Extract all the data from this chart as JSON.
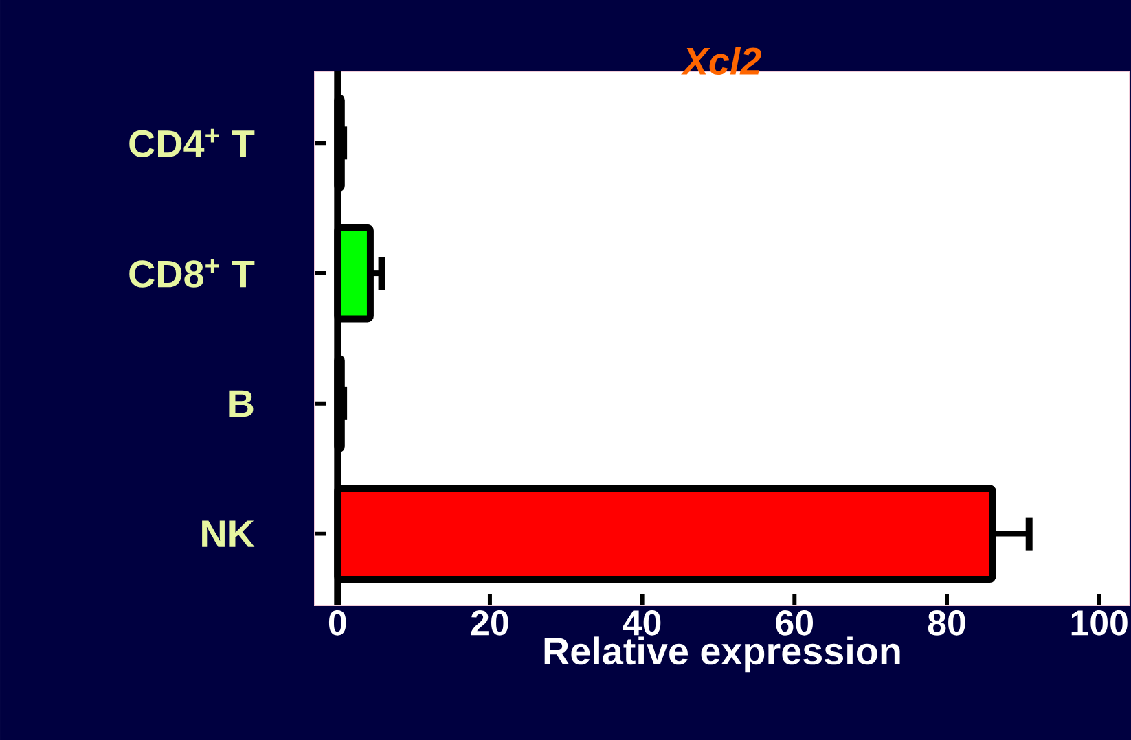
{
  "chart_data": {
    "type": "bar",
    "orientation": "horizontal",
    "title": "*Xcl2*",
    "xlabel": "Relative expression",
    "categories": [
      "CD4$^{+}$ T",
      "CD8$^{+}$ T",
      "B",
      "NK"
    ],
    "values": [
      0.5,
      4.3,
      0.5,
      86
    ],
    "errors": [
      0.3,
      1.5,
      0.3,
      4.8
    ],
    "colors": [
      "#000000",
      "#00ff00",
      "#000000",
      "#ff0000"
    ],
    "xlim": [
      -3,
      104
    ],
    "xticks": [
      0,
      20,
      40,
      60,
      80,
      100
    ]
  }
}
